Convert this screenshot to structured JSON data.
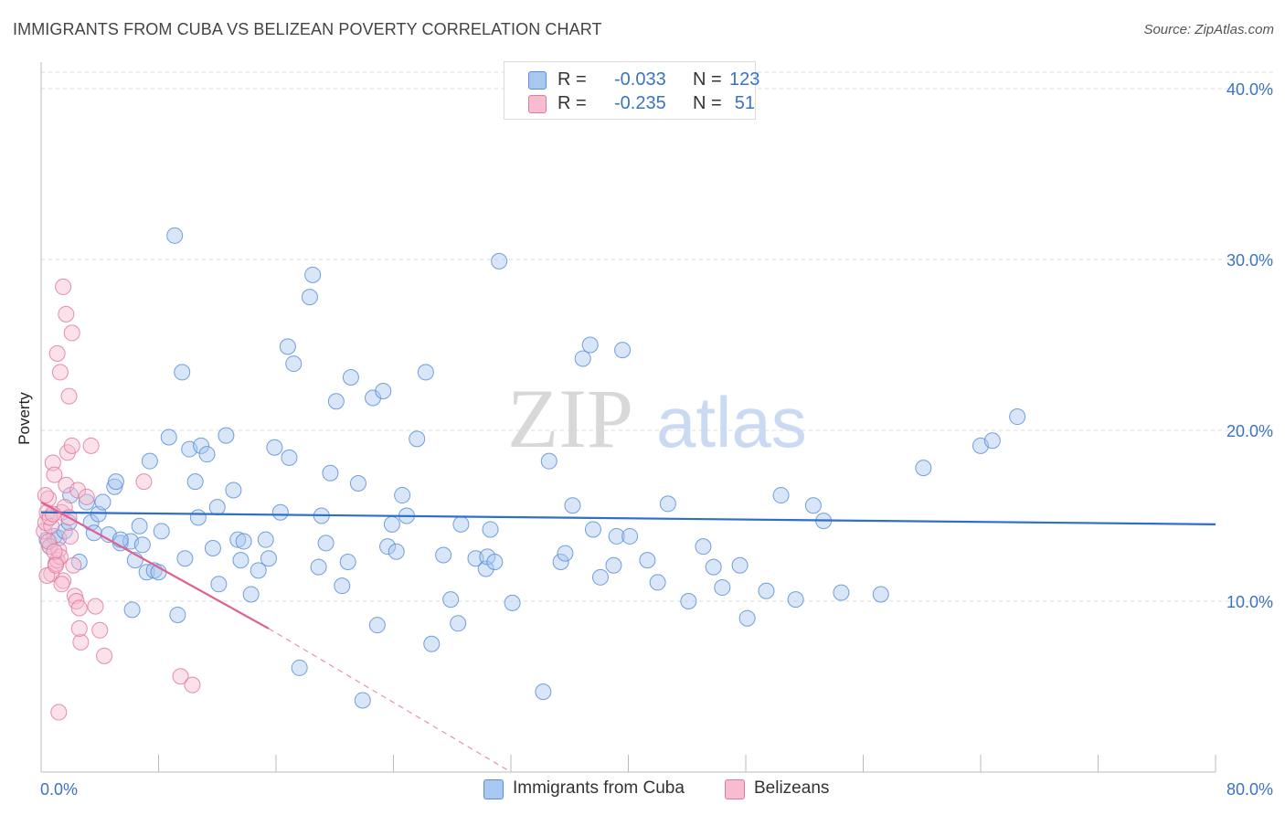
{
  "title": "IMMIGRANTS FROM CUBA VS BELIZEAN POVERTY CORRELATION CHART",
  "source": "Source: ZipAtlas.com",
  "watermark": {
    "part1": "ZIP",
    "part2": "atlas"
  },
  "legend": {
    "rows": [
      {
        "r_label": "R =",
        "r_value": "-0.033",
        "n_label": "N =",
        "n_value": "123",
        "color": "#a9c8f0",
        "border": "#5b8fd8"
      },
      {
        "r_label": "R =",
        "r_value": "-0.235",
        "n_label": "N =",
        "n_value": "51",
        "color": "#f7bcd0",
        "border": "#e07aa0"
      }
    ]
  },
  "bottom_legend": [
    {
      "label": "Immigrants from Cuba",
      "color": "#a9c8f0",
      "border": "#5b8fd8"
    },
    {
      "label": "Belizeans",
      "color": "#f7bcd0",
      "border": "#e07aa0"
    }
  ],
  "chart_data": {
    "type": "scatter",
    "title": "IMMIGRANTS FROM CUBA VS BELIZEAN POVERTY CORRELATION CHART",
    "xlabel": "",
    "ylabel": "Poverty",
    "xlim": [
      0,
      80
    ],
    "ylim": [
      0,
      40
    ],
    "x_tick_labels": [
      {
        "value": 0,
        "label": "0.0%"
      },
      {
        "value": 80,
        "label": "80.0%"
      }
    ],
    "y_tick_labels": [
      {
        "value": 10,
        "label": "10.0%"
      },
      {
        "value": 20,
        "label": "20.0%"
      },
      {
        "value": 30,
        "label": "30.0%"
      },
      {
        "value": 40,
        "label": "40.0%"
      }
    ],
    "grid": true,
    "legend_position": "top-center",
    "series": [
      {
        "name": "Immigrants from Cuba",
        "color": "#a9c8f0",
        "edge": "#5b8fd8",
        "trend": {
          "x": [
            0,
            80
          ],
          "y": [
            15.2,
            14.5
          ],
          "color": "#2f6fc6"
        },
        "points": [
          [
            0.4,
            13.6
          ],
          [
            0.6,
            13.2
          ],
          [
            0.9,
            13.8
          ],
          [
            1.2,
            13.7
          ],
          [
            1.6,
            14.1
          ],
          [
            1.9,
            14.6
          ],
          [
            2.0,
            16.2
          ],
          [
            2.6,
            12.3
          ],
          [
            3.1,
            15.8
          ],
          [
            3.4,
            14.6
          ],
          [
            3.6,
            14.0
          ],
          [
            3.9,
            15.1
          ],
          [
            4.2,
            15.8
          ],
          [
            4.6,
            13.9
          ],
          [
            5.0,
            16.7
          ],
          [
            5.1,
            17.0
          ],
          [
            5.4,
            13.4
          ],
          [
            6.1,
            13.5
          ],
          [
            6.2,
            9.5
          ],
          [
            6.4,
            12.4
          ],
          [
            6.7,
            14.4
          ],
          [
            6.9,
            13.3
          ],
          [
            7.2,
            11.7
          ],
          [
            7.4,
            18.2
          ],
          [
            7.7,
            11.8
          ],
          [
            8.2,
            14.1
          ],
          [
            8.7,
            19.6
          ],
          [
            9.1,
            31.4
          ],
          [
            9.3,
            9.2
          ],
          [
            9.6,
            23.4
          ],
          [
            9.8,
            12.5
          ],
          [
            10.1,
            18.9
          ],
          [
            10.5,
            17.0
          ],
          [
            10.7,
            14.9
          ],
          [
            10.9,
            19.1
          ],
          [
            11.3,
            18.6
          ],
          [
            11.7,
            13.1
          ],
          [
            12.0,
            15.5
          ],
          [
            12.1,
            11.0
          ],
          [
            12.6,
            19.7
          ],
          [
            13.1,
            16.5
          ],
          [
            13.4,
            13.6
          ],
          [
            13.6,
            12.4
          ],
          [
            13.8,
            13.5
          ],
          [
            14.3,
            10.4
          ],
          [
            14.8,
            11.8
          ],
          [
            15.3,
            13.6
          ],
          [
            15.5,
            12.5
          ],
          [
            15.9,
            19.0
          ],
          [
            16.3,
            15.2
          ],
          [
            16.8,
            24.9
          ],
          [
            16.9,
            18.4
          ],
          [
            17.2,
            23.9
          ],
          [
            17.6,
            6.1
          ],
          [
            18.3,
            27.8
          ],
          [
            18.5,
            29.1
          ],
          [
            18.9,
            12.0
          ],
          [
            19.1,
            15.0
          ],
          [
            19.4,
            13.4
          ],
          [
            19.7,
            17.5
          ],
          [
            20.1,
            21.7
          ],
          [
            20.5,
            10.9
          ],
          [
            20.9,
            12.3
          ],
          [
            21.1,
            23.1
          ],
          [
            21.6,
            16.9
          ],
          [
            21.9,
            4.2
          ],
          [
            22.6,
            21.9
          ],
          [
            22.9,
            8.6
          ],
          [
            23.3,
            22.3
          ],
          [
            23.6,
            13.2
          ],
          [
            23.9,
            14.5
          ],
          [
            24.2,
            12.9
          ],
          [
            24.6,
            16.2
          ],
          [
            24.9,
            15.0
          ],
          [
            25.6,
            19.5
          ],
          [
            26.2,
            23.4
          ],
          [
            26.6,
            7.5
          ],
          [
            27.4,
            12.7
          ],
          [
            27.9,
            10.1
          ],
          [
            28.4,
            8.7
          ],
          [
            28.6,
            14.5
          ],
          [
            29.6,
            12.5
          ],
          [
            30.3,
            11.9
          ],
          [
            30.4,
            12.6
          ],
          [
            30.6,
            14.2
          ],
          [
            30.9,
            12.3
          ],
          [
            31.2,
            29.9
          ],
          [
            32.1,
            9.9
          ],
          [
            34.2,
            4.7
          ],
          [
            34.6,
            18.2
          ],
          [
            35.4,
            12.3
          ],
          [
            35.7,
            12.8
          ],
          [
            36.2,
            15.6
          ],
          [
            37.6,
            14.2
          ],
          [
            38.1,
            11.4
          ],
          [
            39.0,
            12.1
          ],
          [
            39.2,
            13.8
          ],
          [
            39.6,
            24.7
          ],
          [
            40.1,
            13.8
          ],
          [
            41.3,
            12.4
          ],
          [
            42.0,
            11.1
          ],
          [
            42.7,
            15.7
          ],
          [
            44.1,
            10.0
          ],
          [
            45.1,
            13.2
          ],
          [
            45.8,
            12.0
          ],
          [
            46.4,
            10.8
          ],
          [
            47.6,
            12.1
          ],
          [
            48.1,
            9.0
          ],
          [
            49.4,
            10.6
          ],
          [
            50.4,
            16.2
          ],
          [
            51.4,
            10.1
          ],
          [
            52.6,
            15.6
          ],
          [
            53.3,
            14.7
          ],
          [
            54.5,
            10.5
          ],
          [
            57.2,
            10.4
          ],
          [
            60.1,
            17.8
          ],
          [
            64.0,
            19.1
          ],
          [
            64.8,
            19.4
          ],
          [
            66.5,
            20.8
          ],
          [
            36.9,
            24.2
          ],
          [
            37.4,
            25.0
          ],
          [
            5.4,
            13.6
          ],
          [
            8.0,
            11.7
          ]
        ]
      },
      {
        "name": "Belizeans",
        "color": "#f7bcd0",
        "edge": "#e07aa0",
        "trend": {
          "x": [
            0,
            15.5
          ],
          "y": [
            15.8,
            8.4
          ],
          "dash_to": [
            32,
            0
          ],
          "color": "#e05f92"
        },
        "points": [
          [
            0.2,
            14.1
          ],
          [
            0.3,
            14.6
          ],
          [
            0.4,
            15.2
          ],
          [
            0.5,
            16.0
          ],
          [
            0.6,
            13.2
          ],
          [
            0.7,
            11.6
          ],
          [
            0.8,
            18.1
          ],
          [
            0.9,
            17.4
          ],
          [
            1.0,
            12.2
          ],
          [
            1.1,
            12.4
          ],
          [
            1.2,
            13.0
          ],
          [
            1.3,
            12.6
          ],
          [
            1.4,
            15.2
          ],
          [
            1.5,
            11.2
          ],
          [
            1.6,
            15.5
          ],
          [
            1.7,
            16.8
          ],
          [
            1.8,
            18.7
          ],
          [
            1.9,
            14.9
          ],
          [
            2.0,
            13.8
          ],
          [
            2.1,
            19.1
          ],
          [
            2.2,
            12.1
          ],
          [
            2.3,
            10.3
          ],
          [
            2.4,
            10.0
          ],
          [
            2.5,
            16.5
          ],
          [
            2.6,
            9.6
          ],
          [
            2.7,
            7.6
          ],
          [
            0.3,
            16.2
          ],
          [
            0.5,
            13.5
          ],
          [
            0.7,
            14.4
          ],
          [
            0.9,
            12.9
          ],
          [
            1.1,
            24.5
          ],
          [
            1.3,
            23.4
          ],
          [
            1.5,
            28.4
          ],
          [
            1.7,
            26.8
          ],
          [
            1.9,
            22.0
          ],
          [
            2.1,
            25.7
          ],
          [
            0.4,
            11.5
          ],
          [
            0.6,
            14.9
          ],
          [
            0.8,
            15.1
          ],
          [
            1.0,
            12.1
          ],
          [
            1.4,
            11.0
          ],
          [
            2.6,
            8.4
          ],
          [
            3.1,
            16.1
          ],
          [
            3.4,
            19.1
          ],
          [
            3.7,
            9.7
          ],
          [
            4.0,
            8.3
          ],
          [
            4.3,
            6.8
          ],
          [
            7.0,
            17.0
          ],
          [
            9.5,
            5.6
          ],
          [
            10.3,
            5.1
          ],
          [
            1.2,
            3.5
          ]
        ]
      }
    ]
  }
}
